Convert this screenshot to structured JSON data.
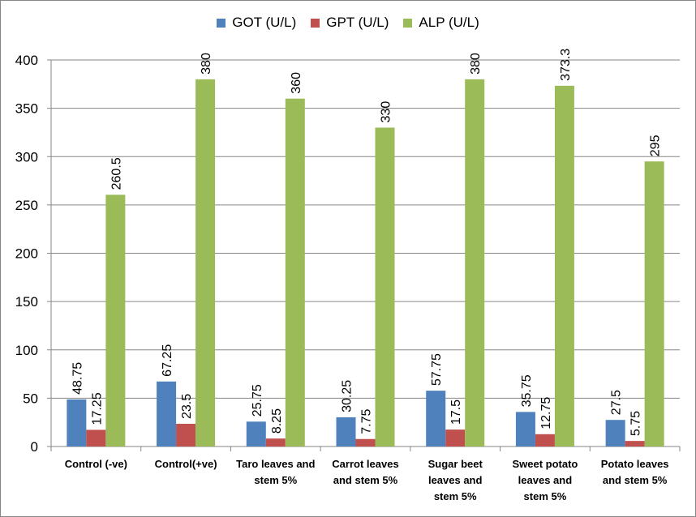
{
  "chart_data": {
    "type": "bar",
    "categories": [
      [
        "Control (-ve)"
      ],
      [
        "Control(+ve)"
      ],
      [
        "Taro leaves and",
        "stem 5%"
      ],
      [
        "Carrot leaves",
        "and stem 5%"
      ],
      [
        "Sugar beet",
        "leaves and",
        "stem 5%"
      ],
      [
        "Sweet potato",
        "leaves and",
        "stem 5%"
      ],
      [
        "Potato leaves",
        "and stem 5%"
      ]
    ],
    "series": [
      {
        "name": "GOT (U/L)",
        "color": "#4F81BD",
        "values": [
          48.75,
          67.25,
          25.75,
          30.25,
          57.75,
          35.75,
          27.5
        ]
      },
      {
        "name": "GPT (U/L)",
        "color": "#C0504D",
        "values": [
          17.25,
          23.5,
          8.25,
          7.75,
          17.5,
          12.75,
          5.75
        ]
      },
      {
        "name": "ALP (U/L)",
        "color": "#9BBB59",
        "values": [
          260.5,
          380,
          360,
          330,
          380,
          373.3,
          295
        ]
      }
    ],
    "ylim": [
      0,
      400
    ],
    "yticks": [
      0,
      50,
      100,
      150,
      200,
      250,
      300,
      350,
      400
    ],
    "grid": true,
    "legend_position": "top",
    "title": "",
    "xlabel": "",
    "ylabel": ""
  }
}
